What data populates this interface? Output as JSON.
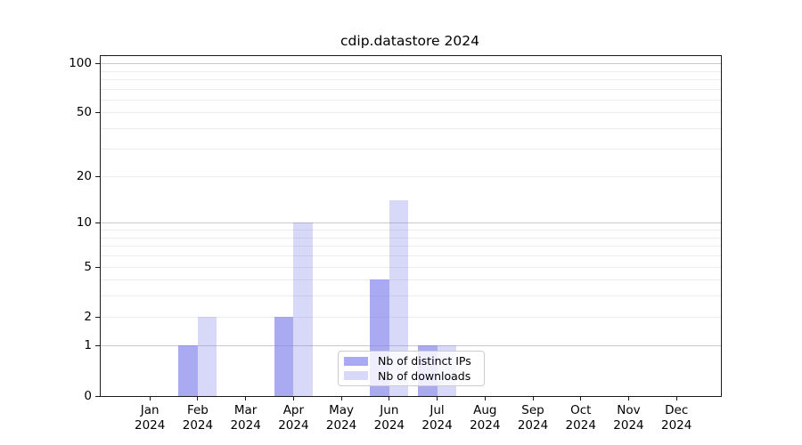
{
  "chart_data": {
    "type": "bar",
    "title": "cdip.datastore 2024",
    "categories": [
      "Jan",
      "Feb",
      "Mar",
      "Apr",
      "May",
      "Jun",
      "Jul",
      "Aug",
      "Sep",
      "Oct",
      "Nov",
      "Dec"
    ],
    "year_label": "2024",
    "series": [
      {
        "name": "Nb of distinct IPs",
        "color": "rgba(126,126,235,0.66)",
        "values": [
          0,
          1,
          0,
          2,
          0,
          4,
          1,
          0,
          0,
          0,
          0,
          0
        ]
      },
      {
        "name": "Nb of downloads",
        "color": "rgba(126,126,235,0.30)",
        "values": [
          0,
          2,
          0,
          10,
          0,
          14,
          1,
          0,
          0,
          0,
          0,
          0
        ]
      }
    ],
    "yscale": "log1p",
    "ylim": [
      0,
      110
    ],
    "ytick_labels": [
      "0",
      "1",
      "2",
      "5",
      "10",
      "20",
      "50",
      "100"
    ],
    "ytick_values": [
      0,
      1,
      2,
      5,
      10,
      20,
      50,
      100
    ],
    "major_gridlines": [
      1,
      10,
      100
    ],
    "minor_gridlines": [
      2,
      3,
      4,
      5,
      6,
      7,
      8,
      9,
      20,
      30,
      40,
      50,
      60,
      70,
      80,
      90
    ],
    "major_grid_color": "#c9c9c9",
    "minor_grid_color": "#ececec",
    "grid": true,
    "legend_position": "lower center"
  }
}
